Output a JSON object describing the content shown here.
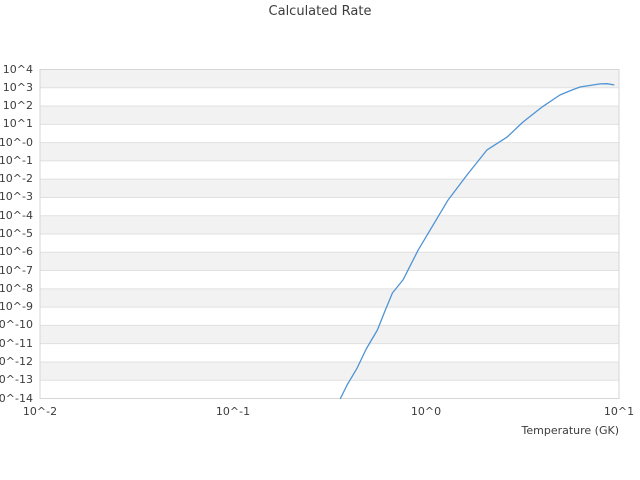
{
  "title": "Calculated Rate",
  "colors": {
    "background": "#ffffff",
    "band_gray": "#f2f2f2",
    "band_white": "#ffffff",
    "gridline": "#e0e0e0",
    "plot_border": "#d6d6d6",
    "text": "#3d3d3d",
    "line": "#4f94d4"
  },
  "chart_data": {
    "type": "line",
    "title": "Calculated Rate",
    "xlabel": "Temperature (GK)",
    "ylabel": "",
    "x_scale": "log",
    "y_scale": "log",
    "xlim_log10": [
      -2,
      1
    ],
    "ylim_log10": [
      -14,
      4
    ],
    "grid": "horizontal decade gridlines with alternating gray/white band shading",
    "legend": "none",
    "x_ticks": [
      {
        "label": "10^-2",
        "exp": -2
      },
      {
        "label": "10^-1",
        "exp": -1
      },
      {
        "label": "10^0",
        "exp": 0
      },
      {
        "label": "10^1",
        "exp": 1
      }
    ],
    "y_ticks": [
      {
        "label": "10^4",
        "exp": 4
      },
      {
        "label": "10^3",
        "exp": 3
      },
      {
        "label": "10^2",
        "exp": 2
      },
      {
        "label": "10^1",
        "exp": 1
      },
      {
        "label": "10^-0",
        "exp": 0
      },
      {
        "label": "10^-1",
        "exp": -1
      },
      {
        "label": "10^-2",
        "exp": -2
      },
      {
        "label": "10^-3",
        "exp": -3
      },
      {
        "label": "10^-4",
        "exp": -4
      },
      {
        "label": "10^-5",
        "exp": -5
      },
      {
        "label": "10^-6",
        "exp": -6
      },
      {
        "label": "10^-7",
        "exp": -7
      },
      {
        "label": "10^-8",
        "exp": -8
      },
      {
        "label": "10^-9",
        "exp": -9
      },
      {
        "label": "10^-10",
        "exp": -10
      },
      {
        "label": "10^-11",
        "exp": -11
      },
      {
        "label": "10^-12",
        "exp": -12
      },
      {
        "label": "10^-13",
        "exp": -13
      },
      {
        "label": "10^-14",
        "exp": -14
      }
    ],
    "series": [
      {
        "name": "calculated rate",
        "color": "#4f94d4",
        "points": [
          [
            0.36,
            1e-14
          ],
          [
            0.39,
            5.5e-14
          ],
          [
            0.44,
            4.7e-13
          ],
          [
            0.49,
            5.1e-12
          ],
          [
            0.56,
            5.6e-11
          ],
          [
            0.61,
            5.5e-10
          ],
          [
            0.67,
            5.9e-09
          ],
          [
            0.76,
            3.1e-08
          ],
          [
            0.91,
            1.3e-06
          ],
          [
            1.0,
            6.9e-06
          ],
          [
            1.3,
            0.00072
          ],
          [
            1.63,
            0.017
          ],
          [
            2.07,
            0.4
          ],
          [
            2.63,
            2.0
          ],
          [
            3.18,
            13.5
          ],
          [
            4.0,
            90
          ],
          [
            4.94,
            404
          ],
          [
            5.6,
            700
          ],
          [
            6.28,
            1100
          ],
          [
            7.97,
            1620
          ],
          [
            8.67,
            1670
          ],
          [
            9.4,
            1430
          ]
        ]
      }
    ]
  }
}
